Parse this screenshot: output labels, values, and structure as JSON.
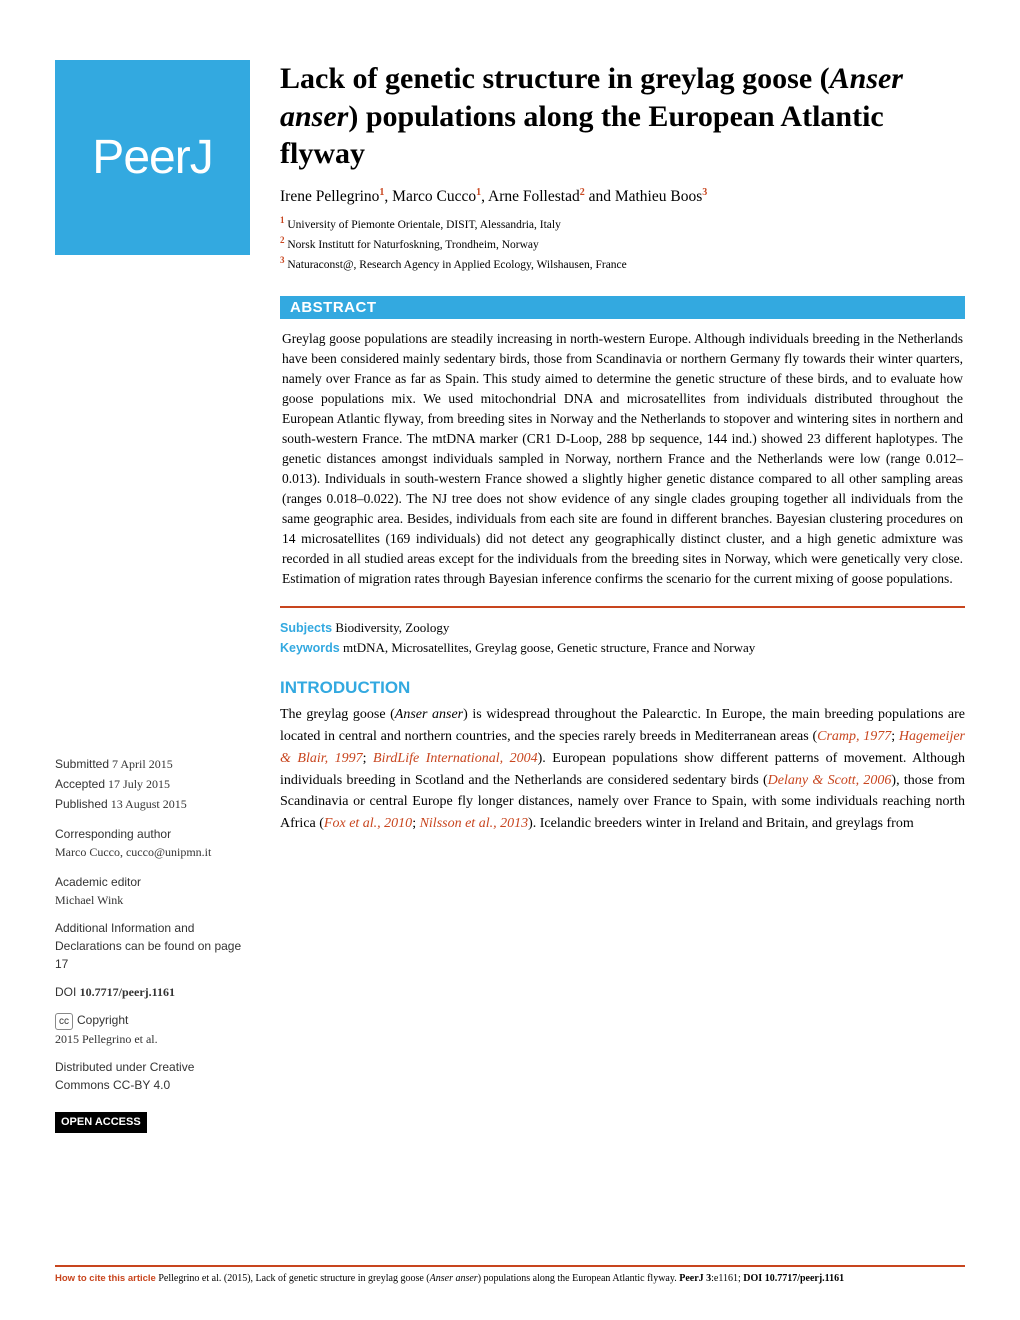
{
  "colors": {
    "brand_blue": "#33a9e0",
    "accent_orange": "#c8451e",
    "text": "#000000",
    "sidebar_text": "#333333",
    "background": "#ffffff"
  },
  "logo": {
    "text": "PeerJ"
  },
  "title_parts": {
    "a": "Lack of genetic structure in greylag goose (",
    "b_italic": "Anser anser",
    "c": ") populations along the European Atlantic flyway"
  },
  "authors_html_parts": [
    {
      "t": "Irene Pellegrino",
      "sup": "1"
    },
    {
      "t": ", Marco Cucco",
      "sup": "1"
    },
    {
      "t": ", Arne Follestad",
      "sup": "2"
    },
    {
      "t": " and Mathieu Boos",
      "sup": "3"
    }
  ],
  "affiliations": [
    {
      "sup": "1",
      "text": " University of Piemonte Orientale, DISIT, Alessandria, Italy"
    },
    {
      "sup": "2",
      "text": " Norsk Institutt for Naturfoskning, Trondheim, Norway"
    },
    {
      "sup": "3",
      "text": " Naturaconst@, Research Agency in Applied Ecology, Wilshausen, France"
    }
  ],
  "abstract": {
    "header": "ABSTRACT",
    "body": "Greylag goose populations are steadily increasing in north-western Europe. Although individuals breeding in the Netherlands have been considered mainly sedentary birds, those from Scandinavia or northern Germany fly towards their winter quarters, namely over France as far as Spain. This study aimed to determine the genetic structure of these birds, and to evaluate how goose populations mix. We used mitochondrial DNA and microsatellites from individuals distributed throughout the European Atlantic flyway, from breeding sites in Norway and the Netherlands to stopover and wintering sites in northern and south-western France. The mtDNA marker (CR1 D-Loop, 288 bp sequence, 144 ind.) showed 23 different haplotypes. The genetic distances amongst individuals sampled in Norway, northern France and the Netherlands were low (range 0.012–0.013). Individuals in south-western France showed a slightly higher genetic distance compared to all other sampling areas (ranges 0.018–0.022). The NJ tree does not show evidence of any single clades grouping together all individuals from the same geographic area. Besides, individuals from each site are found in different branches. Bayesian clustering procedures on 14 microsatellites (169 individuals) did not detect any geographically distinct cluster, and a high genetic admixture was recorded in all studied areas except for the individuals from the breeding sites in Norway, which were genetically very close. Estimation of migration rates through Bayesian inference confirms the scenario for the current mixing of goose populations."
  },
  "subjects": {
    "label": "Subjects",
    "value": "  Biodiversity, Zoology"
  },
  "keywords": {
    "label": "Keywords",
    "value": "  mtDNA, Microsatellites, Greylag goose, Genetic structure, France and Norway"
  },
  "introduction": {
    "title": "INTRODUCTION",
    "p1_a": "The greylag goose (",
    "p1_ital": "Anser anser",
    "p1_b": ") is widespread throughout the Palearctic. In Europe, the main breeding populations are located in central and northern countries, and the species rarely breeds in Mediterranean areas (",
    "cite1": "Cramp, 1977",
    "p1_c": "; ",
    "cite2": "Hagemeijer & Blair, 1997",
    "p1_d": "; ",
    "cite3": "BirdLife International, 2004",
    "p1_e": "). European populations show different patterns of movement. Although individuals breeding in Scotland and the Netherlands are considered sedentary birds (",
    "cite4": "Delany & Scott, 2006",
    "p1_f": "), those from Scandinavia or central Europe fly longer distances, namely over France to Spain, with some individuals reaching north Africa (",
    "cite5": "Fox et al., 2010",
    "p1_g": "; ",
    "cite6": "Nilsson et al., 2013",
    "p1_h": "). Icelandic breeders winter in Ireland and Britain, and greylags from"
  },
  "sidebar": {
    "submitted": {
      "label": "Submitted",
      "value": " 7 April 2015"
    },
    "accepted": {
      "label": "Accepted",
      "value": " 17 July 2015"
    },
    "published": {
      "label": "Published",
      "value": " 13 August 2015"
    },
    "corresponding_label": "Corresponding author",
    "corresponding_value": "Marco Cucco, cucco@unipmn.it",
    "editor_label": "Academic editor",
    "editor_value": "Michael Wink",
    "addl_info": "Additional Information and Declarations can be found on page 17",
    "doi_label": "DOI ",
    "doi_value": "10.7717/peerj.1161",
    "cc_badge": "cc",
    "copyright_label": "Copyright",
    "copyright_value": "2015 Pellegrino et al.",
    "distributed": "Distributed under Creative Commons CC-BY 4.0",
    "open_access": "OPEN ACCESS"
  },
  "footer": {
    "lead": "How to cite this article",
    "text_a": " Pellegrino et al. (2015), Lack of genetic structure in greylag goose (",
    "ital": "Anser anser",
    "text_b": ") populations along the European Atlantic flyway. ",
    "journal": "PeerJ ",
    "vol": "3",
    "pg": ":e1161",
    "sep": "; ",
    "doi": "DOI 10.7717/peerj.1161"
  }
}
